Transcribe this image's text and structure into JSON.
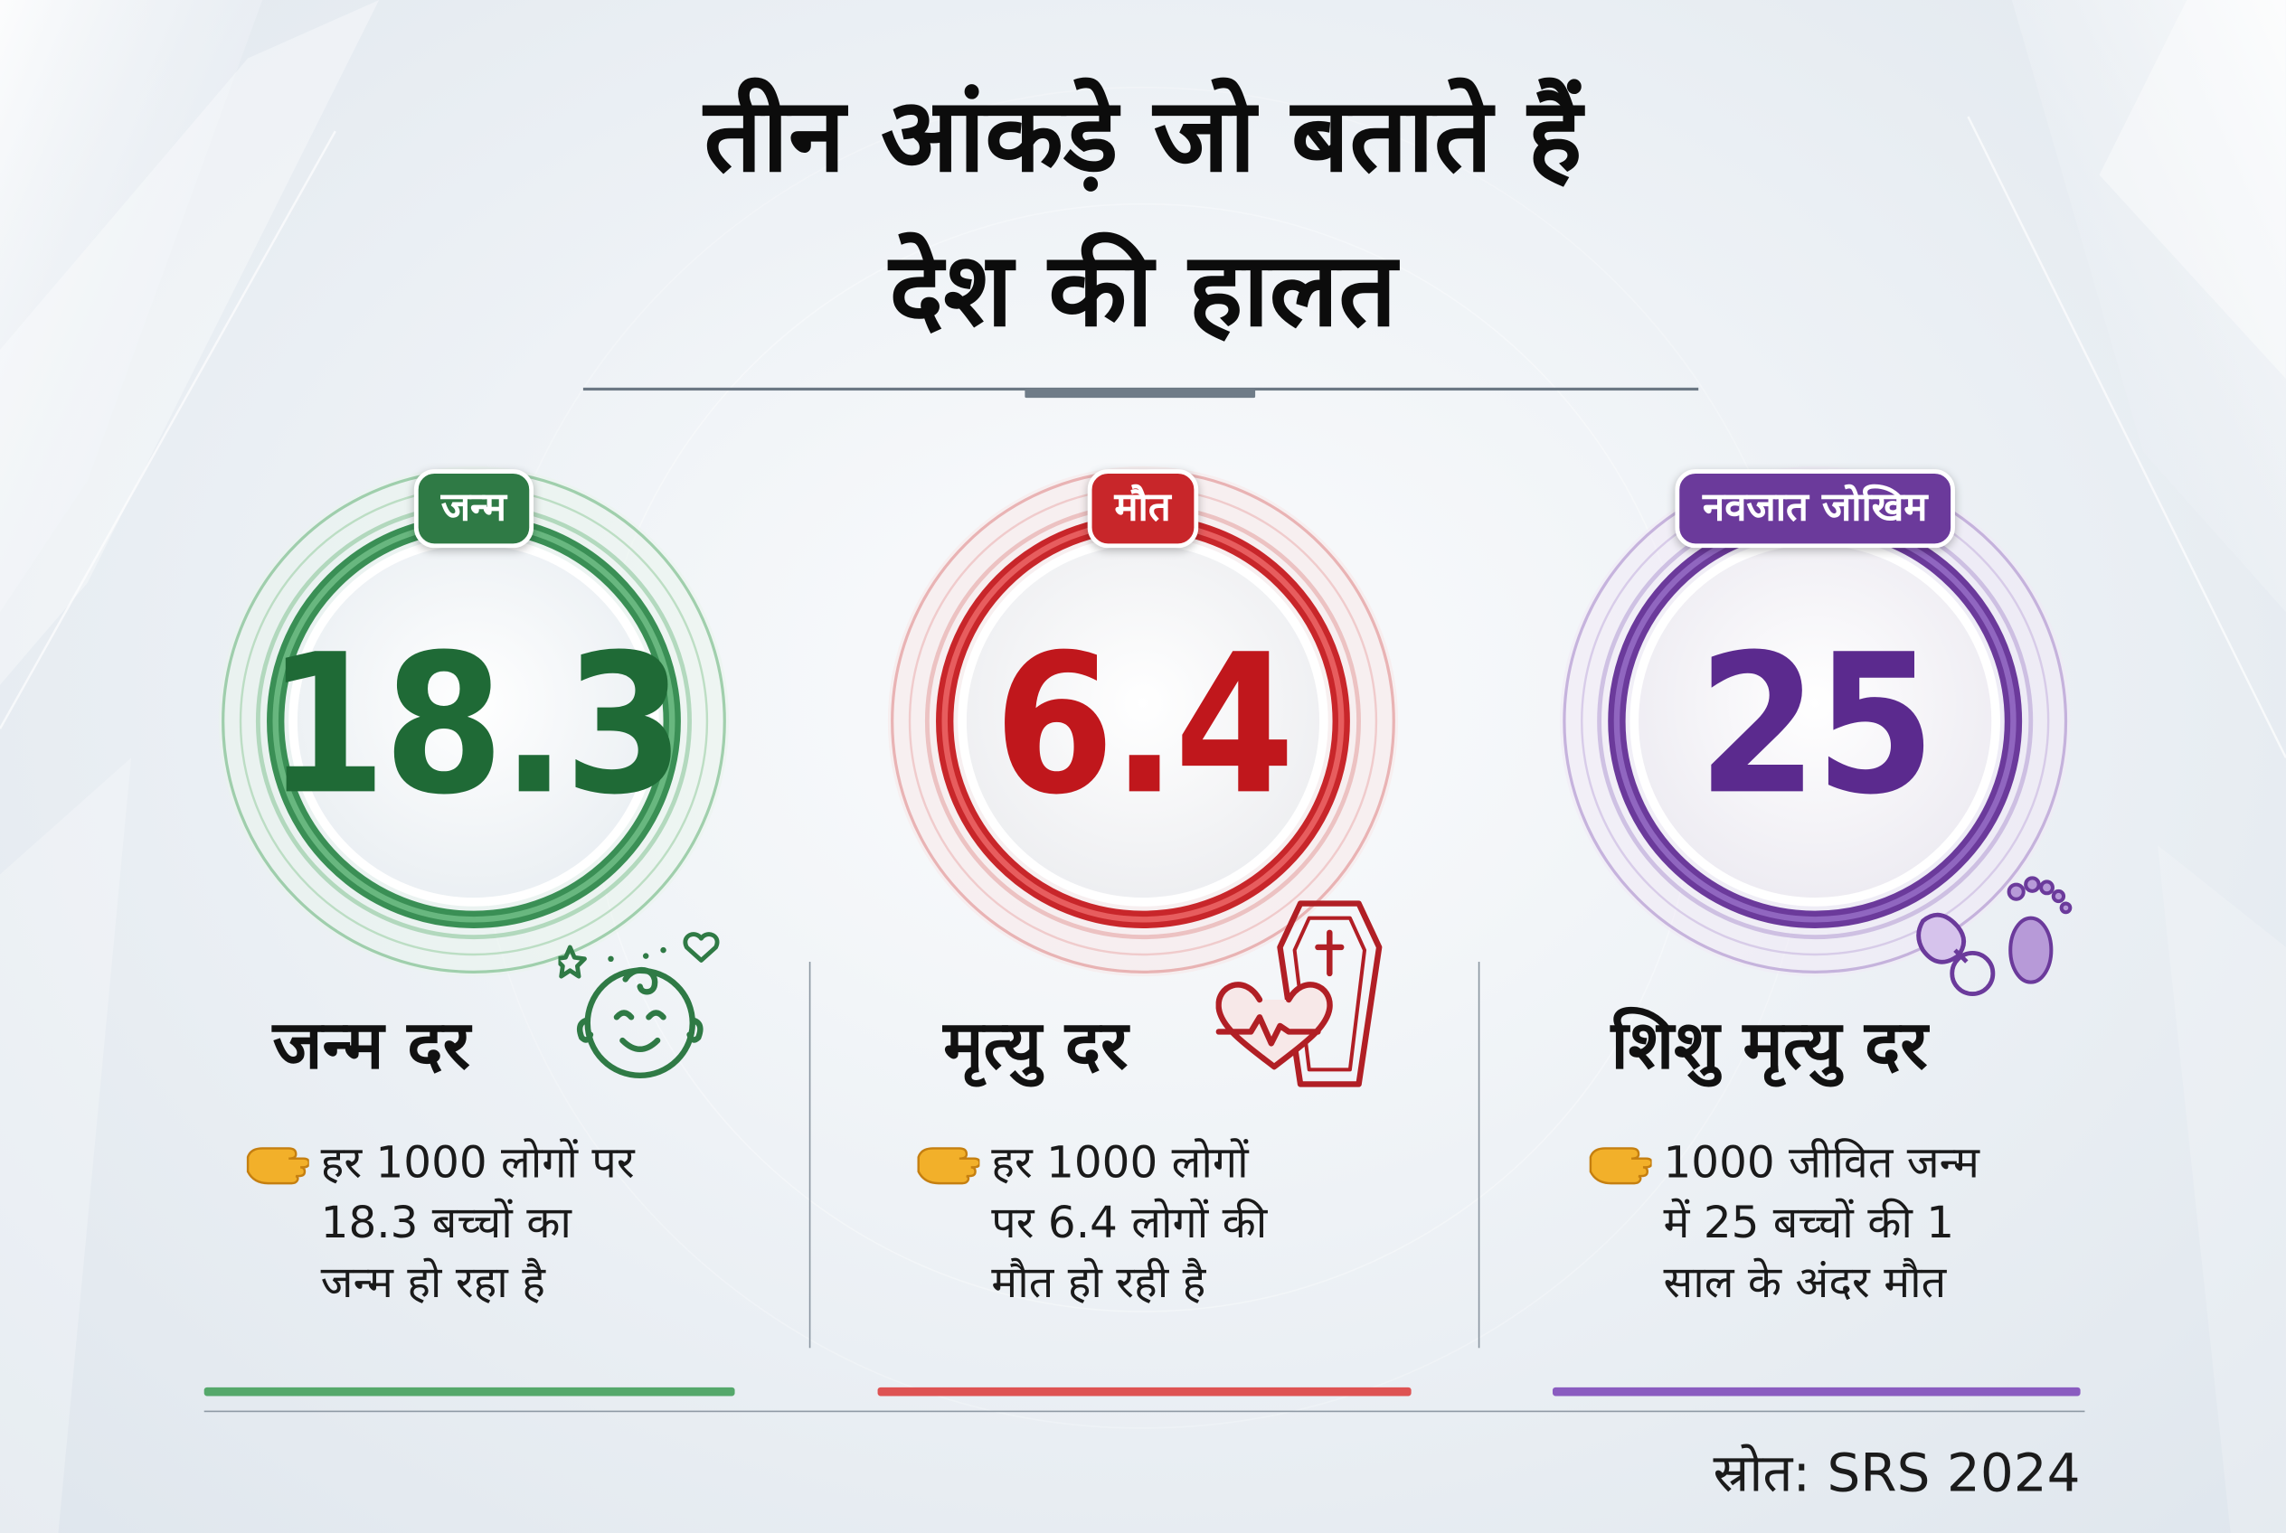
{
  "title": {
    "line1": "तीन आंकड़े जो बताते हैं",
    "line2": "देश की हालत"
  },
  "cards": [
    {
      "badge": "जन्म",
      "value": "18.3",
      "heading": "जन्म दर",
      "description": [
        "हर 1000 लोगों पर",
        "18.3 बच्चों का",
        "जन्म हो रहा है"
      ],
      "icon": "baby-face-icon",
      "color": "#2f7a45",
      "accent": "#55a86b",
      "number_color": "#1f6a36"
    },
    {
      "badge": "मौत",
      "value": "6.4",
      "heading": "मृत्यु दर",
      "description": [
        "हर 1000 लोगों",
        "पर 6.4 लोगों की",
        "मौत हो रही है"
      ],
      "icon": "coffin-heartbeat-icon",
      "color": "#c8262a",
      "accent": "#de5353",
      "number_color": "#c0171c"
    },
    {
      "badge": "नवजात जोखिम",
      "value": "25",
      "heading": "शिशु मृत्यु दर",
      "description": [
        "1000 जीवित जन्म",
        "में 25 बच्चों की 1",
        "साल के अंदर मौत"
      ],
      "icon": "pacifier-footprint-icon",
      "color": "#6b3a9b",
      "accent": "#8a5cc0",
      "number_color": "#5b2a8e"
    }
  ],
  "source": "स्रोत: SRS 2024"
}
